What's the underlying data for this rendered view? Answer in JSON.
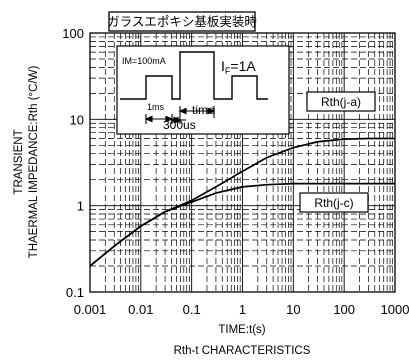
{
  "chart_data": {
    "type": "line",
    "title": "ガラスエポキシ基板実装時",
    "subtitle": "Rth-t CHARACTERISTICS",
    "xlabel": "TIME:t(s)",
    "ylabel_line1": "TRANSIENT",
    "ylabel_line2": "THAERMAL IMPEDANCE:Rth (°C/W)",
    "xscale": "log",
    "yscale": "log",
    "xlim": [
      0.001,
      1000
    ],
    "ylim": [
      0.1,
      100
    ],
    "grid": true,
    "x_ticks": [
      "0.001",
      "0.01",
      "0.1",
      "1",
      "10",
      "100",
      "1000"
    ],
    "y_ticks": [
      "0.1",
      "1",
      "10",
      "100"
    ],
    "series": [
      {
        "name": "Rth(j-a)",
        "x": [
          0.001,
          0.003,
          0.01,
          0.03,
          0.1,
          0.3,
          1,
          3,
          10,
          30,
          100,
          300,
          1000
        ],
        "values": [
          0.2,
          0.34,
          0.58,
          0.85,
          1.15,
          1.65,
          2.5,
          3.6,
          4.7,
          5.5,
          5.9,
          6.0,
          6.0
        ]
      },
      {
        "name": "Rth(j-c)",
        "x": [
          0.001,
          0.003,
          0.01,
          0.03,
          0.1,
          0.3,
          1,
          3,
          10,
          30,
          100,
          300,
          1000
        ],
        "values": [
          0.2,
          0.34,
          0.58,
          0.85,
          1.1,
          1.4,
          1.65,
          1.75,
          1.8,
          1.8,
          1.8,
          1.8,
          1.8
        ]
      }
    ],
    "inset": {
      "im_label": "IM=100mA",
      "if_label": "I",
      "if_sub": "F",
      "if_value": "=1A",
      "pulse_width": "1ms",
      "time_label": "time",
      "period": "300us"
    }
  }
}
